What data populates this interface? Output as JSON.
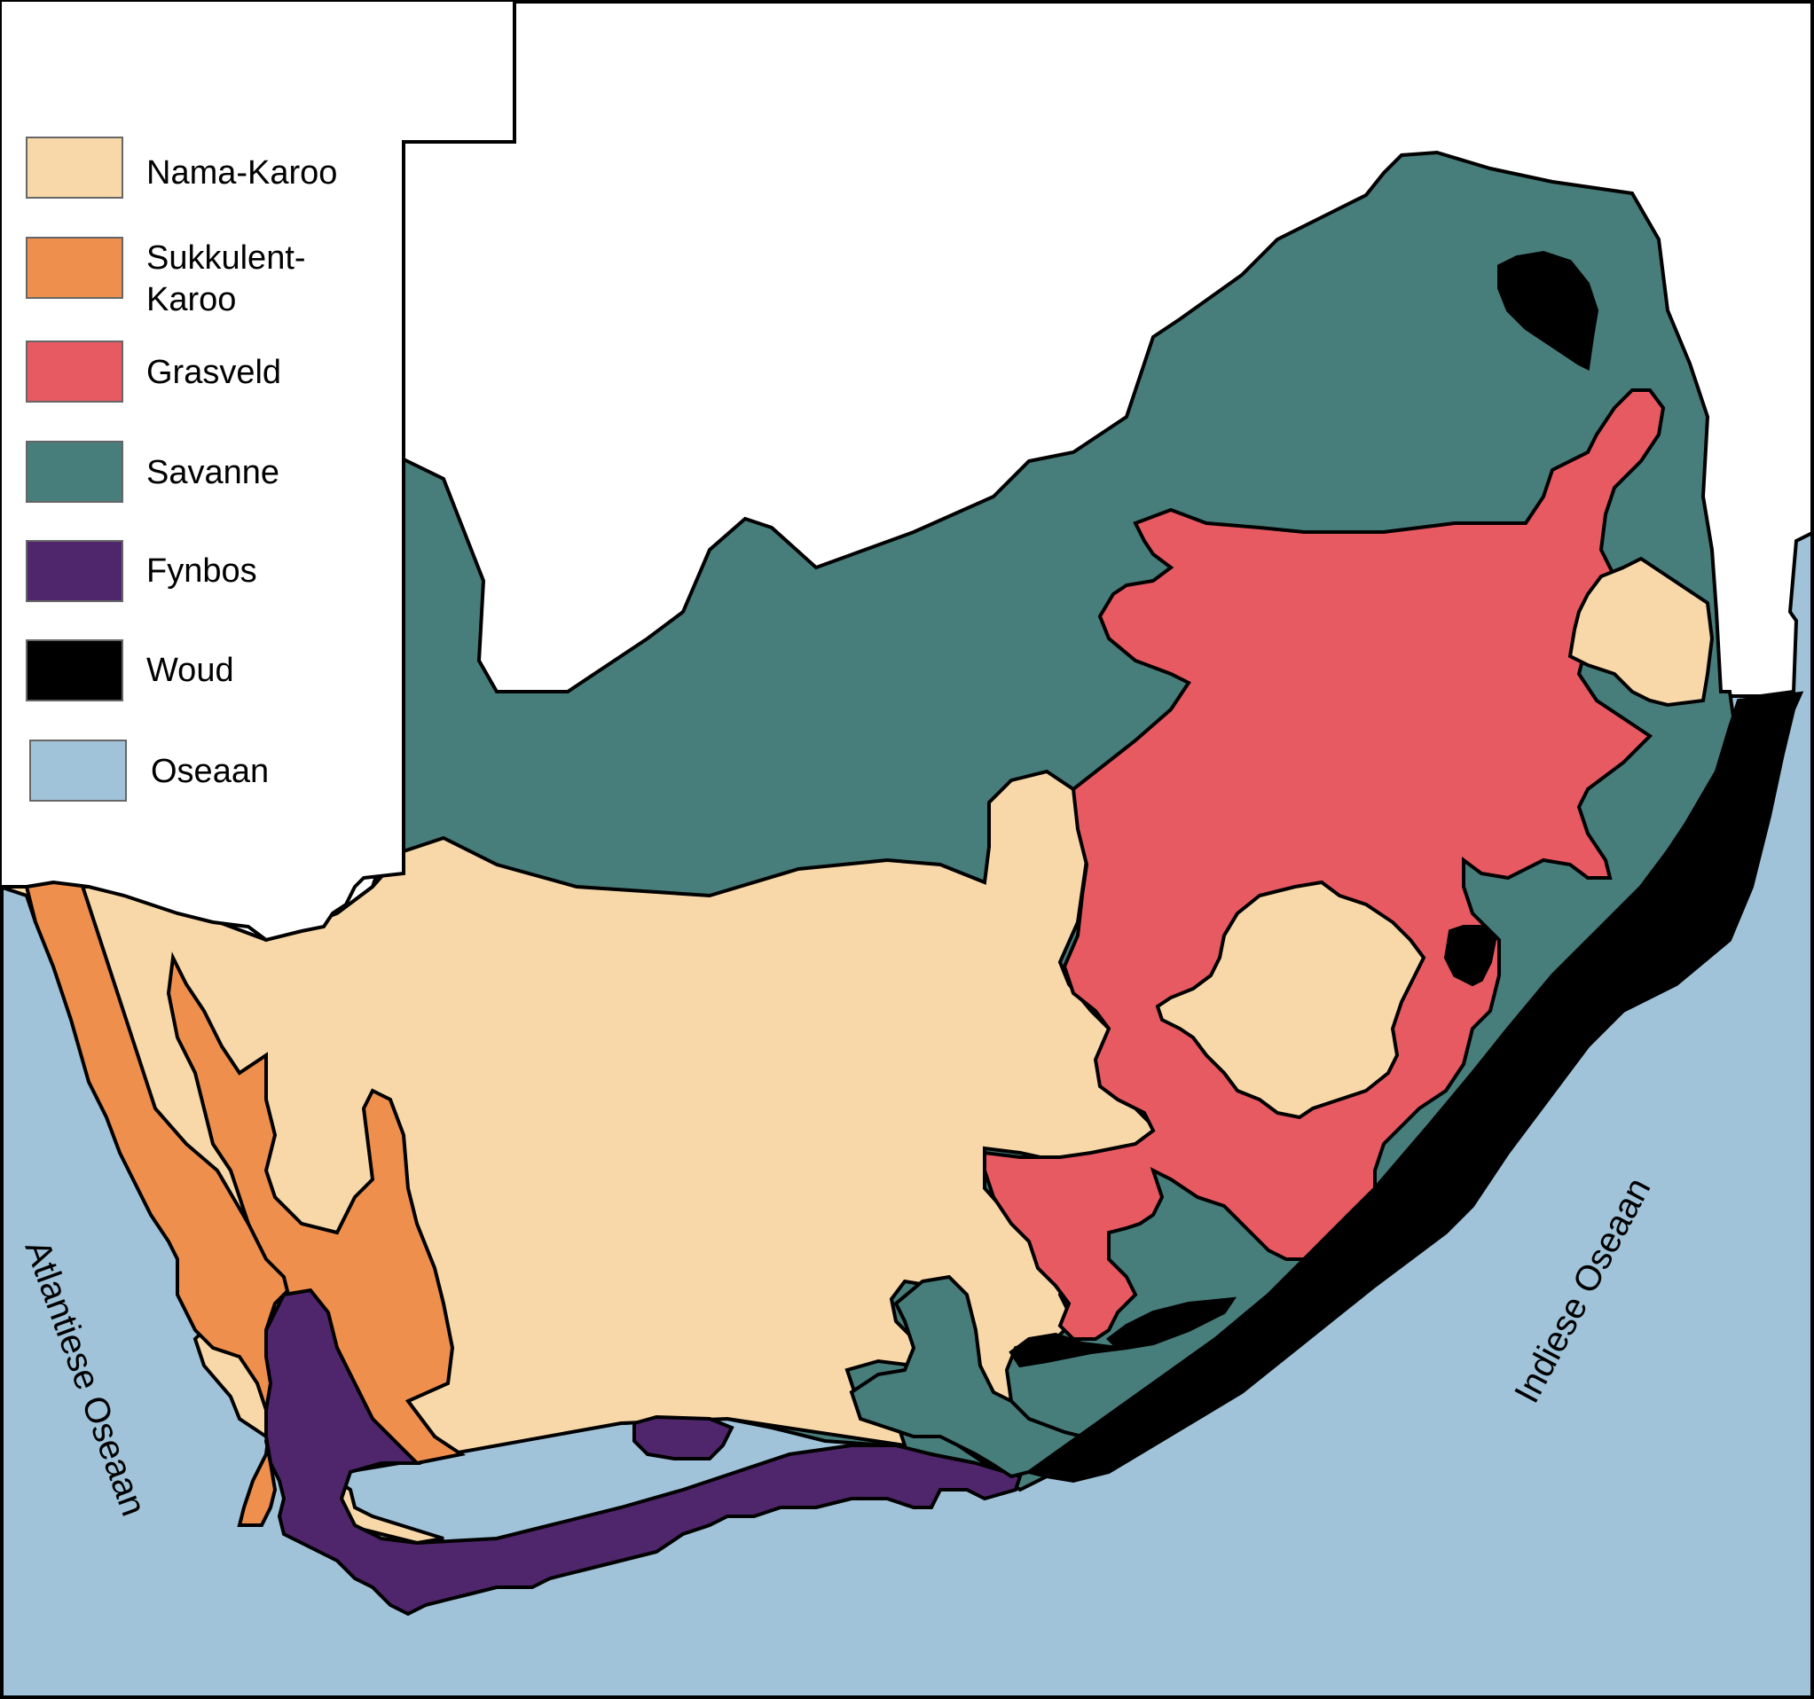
{
  "colors": {
    "nama_karoo": "#f8d8a8",
    "sukkulent_karoo": "#ef8f4d",
    "grasveld": "#e75a62",
    "savanne": "#477d7a",
    "fynbos": "#4f266b",
    "woud": "#000000",
    "oseaan": "#a0c3d9",
    "land_other": "#ffffff",
    "border": "#000000"
  },
  "legend": {
    "items": [
      {
        "key": "nama_karoo",
        "label": "Nama-Karoo"
      },
      {
        "key": "sukkulent_karoo",
        "label_line1": "Sukkulent-",
        "label_line2": "Karoo"
      },
      {
        "key": "grasveld",
        "label": "Grasveld"
      },
      {
        "key": "savanne",
        "label": "Savanne"
      },
      {
        "key": "fynbos",
        "label": "Fynbos"
      },
      {
        "key": "woud",
        "label": "Woud"
      },
      {
        "key": "oseaan",
        "label": "Oseaan"
      }
    ]
  },
  "labels": {
    "atlantic": "Atlantiese Oseaan",
    "indian": "Indiese Oseaan"
  }
}
